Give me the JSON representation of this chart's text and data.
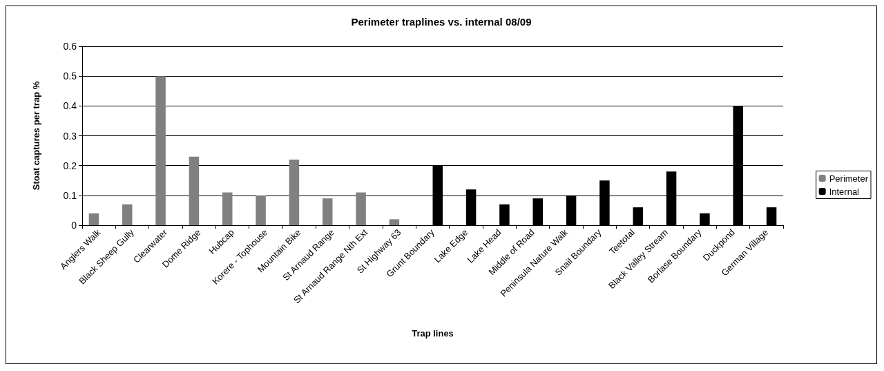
{
  "chart_data": {
    "type": "bar",
    "title": "Perimeter traplines vs. internal 08/09",
    "xlabel": "Trap lines",
    "ylabel": "Stoat captures per trap %",
    "categories": [
      "Anglers Walk",
      "Black Sheep Gully",
      "Clearwater",
      "Dome Ridge",
      "Hubcap",
      "Korere - Tophouse",
      "Mountain Bike",
      "St Arnaud Range",
      "St Arnaud Range Nth Ext",
      "St Highway 63",
      "Grunt Boundary",
      "Lake Edge",
      "Lake Head",
      "Middle of Road",
      "Peninsula Nature Walk",
      "Snail Boundary",
      "Teetotal",
      "Black Valley Stream",
      "Borlase Boundary",
      "Duckpond",
      "German Village"
    ],
    "series": [
      {
        "name": "Perimeter",
        "color": "#808080",
        "values": [
          0.04,
          0.07,
          0.5,
          0.23,
          0.11,
          0.1,
          0.22,
          0.09,
          0.11,
          0.02,
          null,
          null,
          null,
          null,
          null,
          null,
          null,
          null,
          null,
          null,
          null
        ]
      },
      {
        "name": "Internal",
        "color": "#000000",
        "values": [
          null,
          null,
          null,
          null,
          null,
          null,
          null,
          null,
          null,
          null,
          0.2,
          0.12,
          0.07,
          0.09,
          0.1,
          0.15,
          0.06,
          0.18,
          0.04,
          0.4,
          0.06
        ]
      }
    ],
    "ylim": [
      0,
      0.6
    ],
    "yticks": [
      0,
      0.1,
      0.2,
      0.3,
      0.4,
      0.5,
      0.6
    ],
    "grid": "y",
    "legend": "right"
  }
}
